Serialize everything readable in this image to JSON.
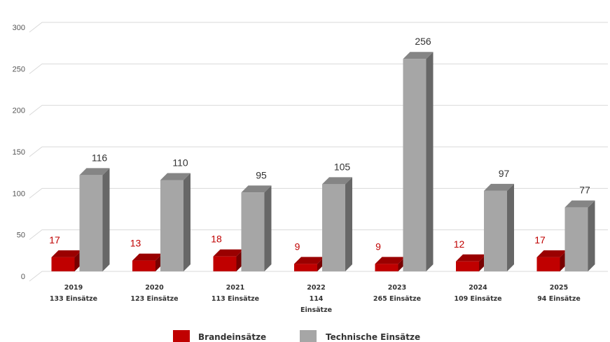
{
  "chart_data": {
    "type": "bar",
    "style": "3d-clustered-column",
    "categories": [
      [
        "2019",
        "133 Einsätze"
      ],
      [
        "2020",
        "123 Einsätze"
      ],
      [
        "2021",
        "113 Einsätze"
      ],
      [
        "2022",
        "114",
        "Einsätze"
      ],
      [
        "2023",
        "265 Einsätze"
      ],
      [
        "2024",
        "109 Einsätze"
      ],
      [
        "2025",
        "94 Einsätze"
      ]
    ],
    "series": [
      {
        "name": "Brandeinsätze",
        "color": "#c00000",
        "label_color": "#c00000",
        "values": [
          17,
          13,
          18,
          9,
          9,
          12,
          17
        ]
      },
      {
        "name": "Technische Einsätze",
        "color": "#a6a6a6",
        "label_color": "#333333",
        "values": [
          116,
          110,
          95,
          105,
          256,
          97,
          77
        ]
      }
    ],
    "y_ticks": [
      0,
      50,
      100,
      150,
      200,
      250,
      300
    ],
    "ylim": [
      0,
      300
    ],
    "grid": true,
    "legend_position": "bottom",
    "title": "",
    "xlabel": "",
    "ylabel": ""
  }
}
